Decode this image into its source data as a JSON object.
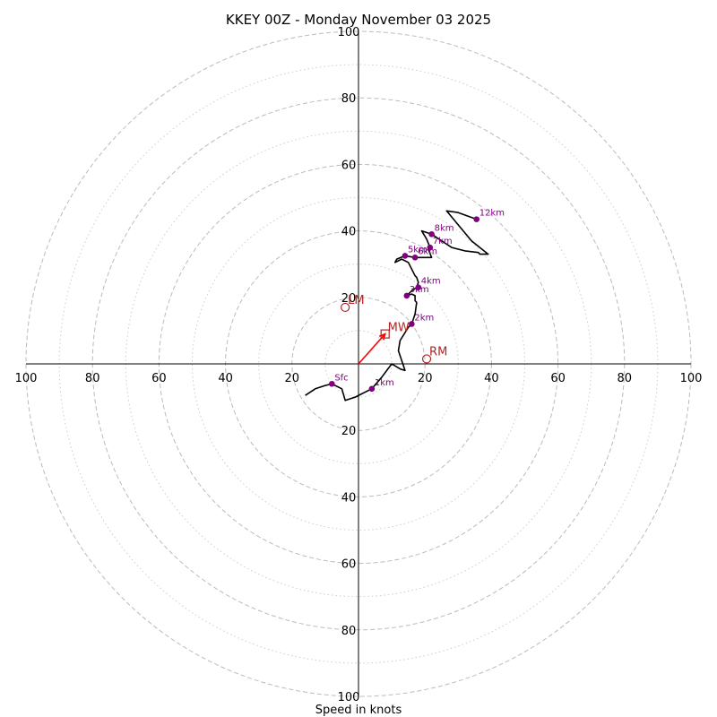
{
  "chart_data": {
    "type": "hodograph",
    "title": "KKEY 00Z - Monday November 03 2025",
    "xlabel": "Speed in knots",
    "ring_max": 100,
    "major_rings": [
      20,
      40,
      60,
      80,
      100
    ],
    "minor_rings": [
      10,
      30,
      50,
      70,
      90
    ],
    "tick_labels": [
      "100",
      "80",
      "60",
      "40",
      "20",
      "20",
      "40",
      "60",
      "80",
      "100"
    ],
    "tick_values": [
      -100,
      -80,
      -60,
      -40,
      -20,
      20,
      40,
      60,
      80,
      100
    ],
    "profile_uv": [
      [
        -16,
        -9.5
      ],
      [
        -13,
        -7.5
      ],
      [
        -10,
        -6.5
      ],
      [
        -8,
        -6
      ],
      [
        -5,
        -7.5
      ],
      [
        -4,
        -11
      ],
      [
        -1,
        -10
      ],
      [
        1,
        -9
      ],
      [
        4,
        -7.5
      ],
      [
        7,
        -4
      ],
      [
        8.5,
        -2
      ],
      [
        10,
        0
      ],
      [
        12.5,
        -1.5
      ],
      [
        14,
        -2
      ],
      [
        13.5,
        -0.5
      ],
      [
        12,
        4
      ],
      [
        12.5,
        7
      ],
      [
        15,
        11
      ],
      [
        16,
        12
      ],
      [
        17,
        15
      ],
      [
        17.5,
        18.5
      ],
      [
        17,
        19
      ],
      [
        17,
        20.5
      ],
      [
        16,
        21
      ],
      [
        14.5,
        20.5
      ],
      [
        16,
        22
      ],
      [
        17.5,
        23
      ],
      [
        18,
        24.5
      ],
      [
        17.5,
        26
      ],
      [
        17,
        26.5
      ],
      [
        16,
        28.5
      ],
      [
        15,
        30.5
      ],
      [
        13,
        31.5
      ],
      [
        11,
        30.5
      ],
      [
        11.5,
        31.5
      ],
      [
        14,
        32.5
      ],
      [
        17,
        32
      ],
      [
        20,
        32
      ],
      [
        22,
        32
      ],
      [
        21,
        34.5
      ],
      [
        21.5,
        35
      ],
      [
        20.5,
        37.5
      ],
      [
        19,
        40
      ],
      [
        22,
        39
      ],
      [
        28,
        35
      ],
      [
        32,
        34
      ],
      [
        36,
        33.5
      ],
      [
        36.5,
        33
      ],
      [
        39,
        33
      ],
      [
        34,
        37
      ],
      [
        26.5,
        46
      ],
      [
        30,
        45.5
      ],
      [
        35.5,
        43.5
      ]
    ],
    "height_markers": [
      {
        "label": "Sfc",
        "u": -8,
        "v": -6
      },
      {
        "label": "1km",
        "u": 4,
        "v": -7.5
      },
      {
        "label": "2km",
        "u": 16,
        "v": 12
      },
      {
        "label": "3km",
        "u": 14.5,
        "v": 20.5
      },
      {
        "label": "4km",
        "u": 18,
        "v": 23
      },
      {
        "label": "5km",
        "u": 14,
        "v": 32.5
      },
      {
        "label": "6km",
        "u": 17,
        "v": 32
      },
      {
        "label": "7km",
        "u": 21.5,
        "v": 35
      },
      {
        "label": "8km",
        "u": 22,
        "v": 39
      },
      {
        "label": "12km",
        "u": 35.5,
        "v": 43.5
      }
    ],
    "storm_motion": {
      "mean_wind": {
        "label": "MW",
        "u": 8,
        "v": 9
      },
      "right_mover": {
        "label": "RM",
        "u": 20.5,
        "v": 1.5
      },
      "left_mover": {
        "label": "LM",
        "u": -4,
        "v": 17
      }
    },
    "colors": {
      "profile": "#000000",
      "marker": "#800080",
      "storm": "#b22222",
      "shear_arrow": "#ff0000",
      "major_grid": "#bbbbbb",
      "minor_grid": "#cccccc",
      "axis": "#000000"
    }
  }
}
